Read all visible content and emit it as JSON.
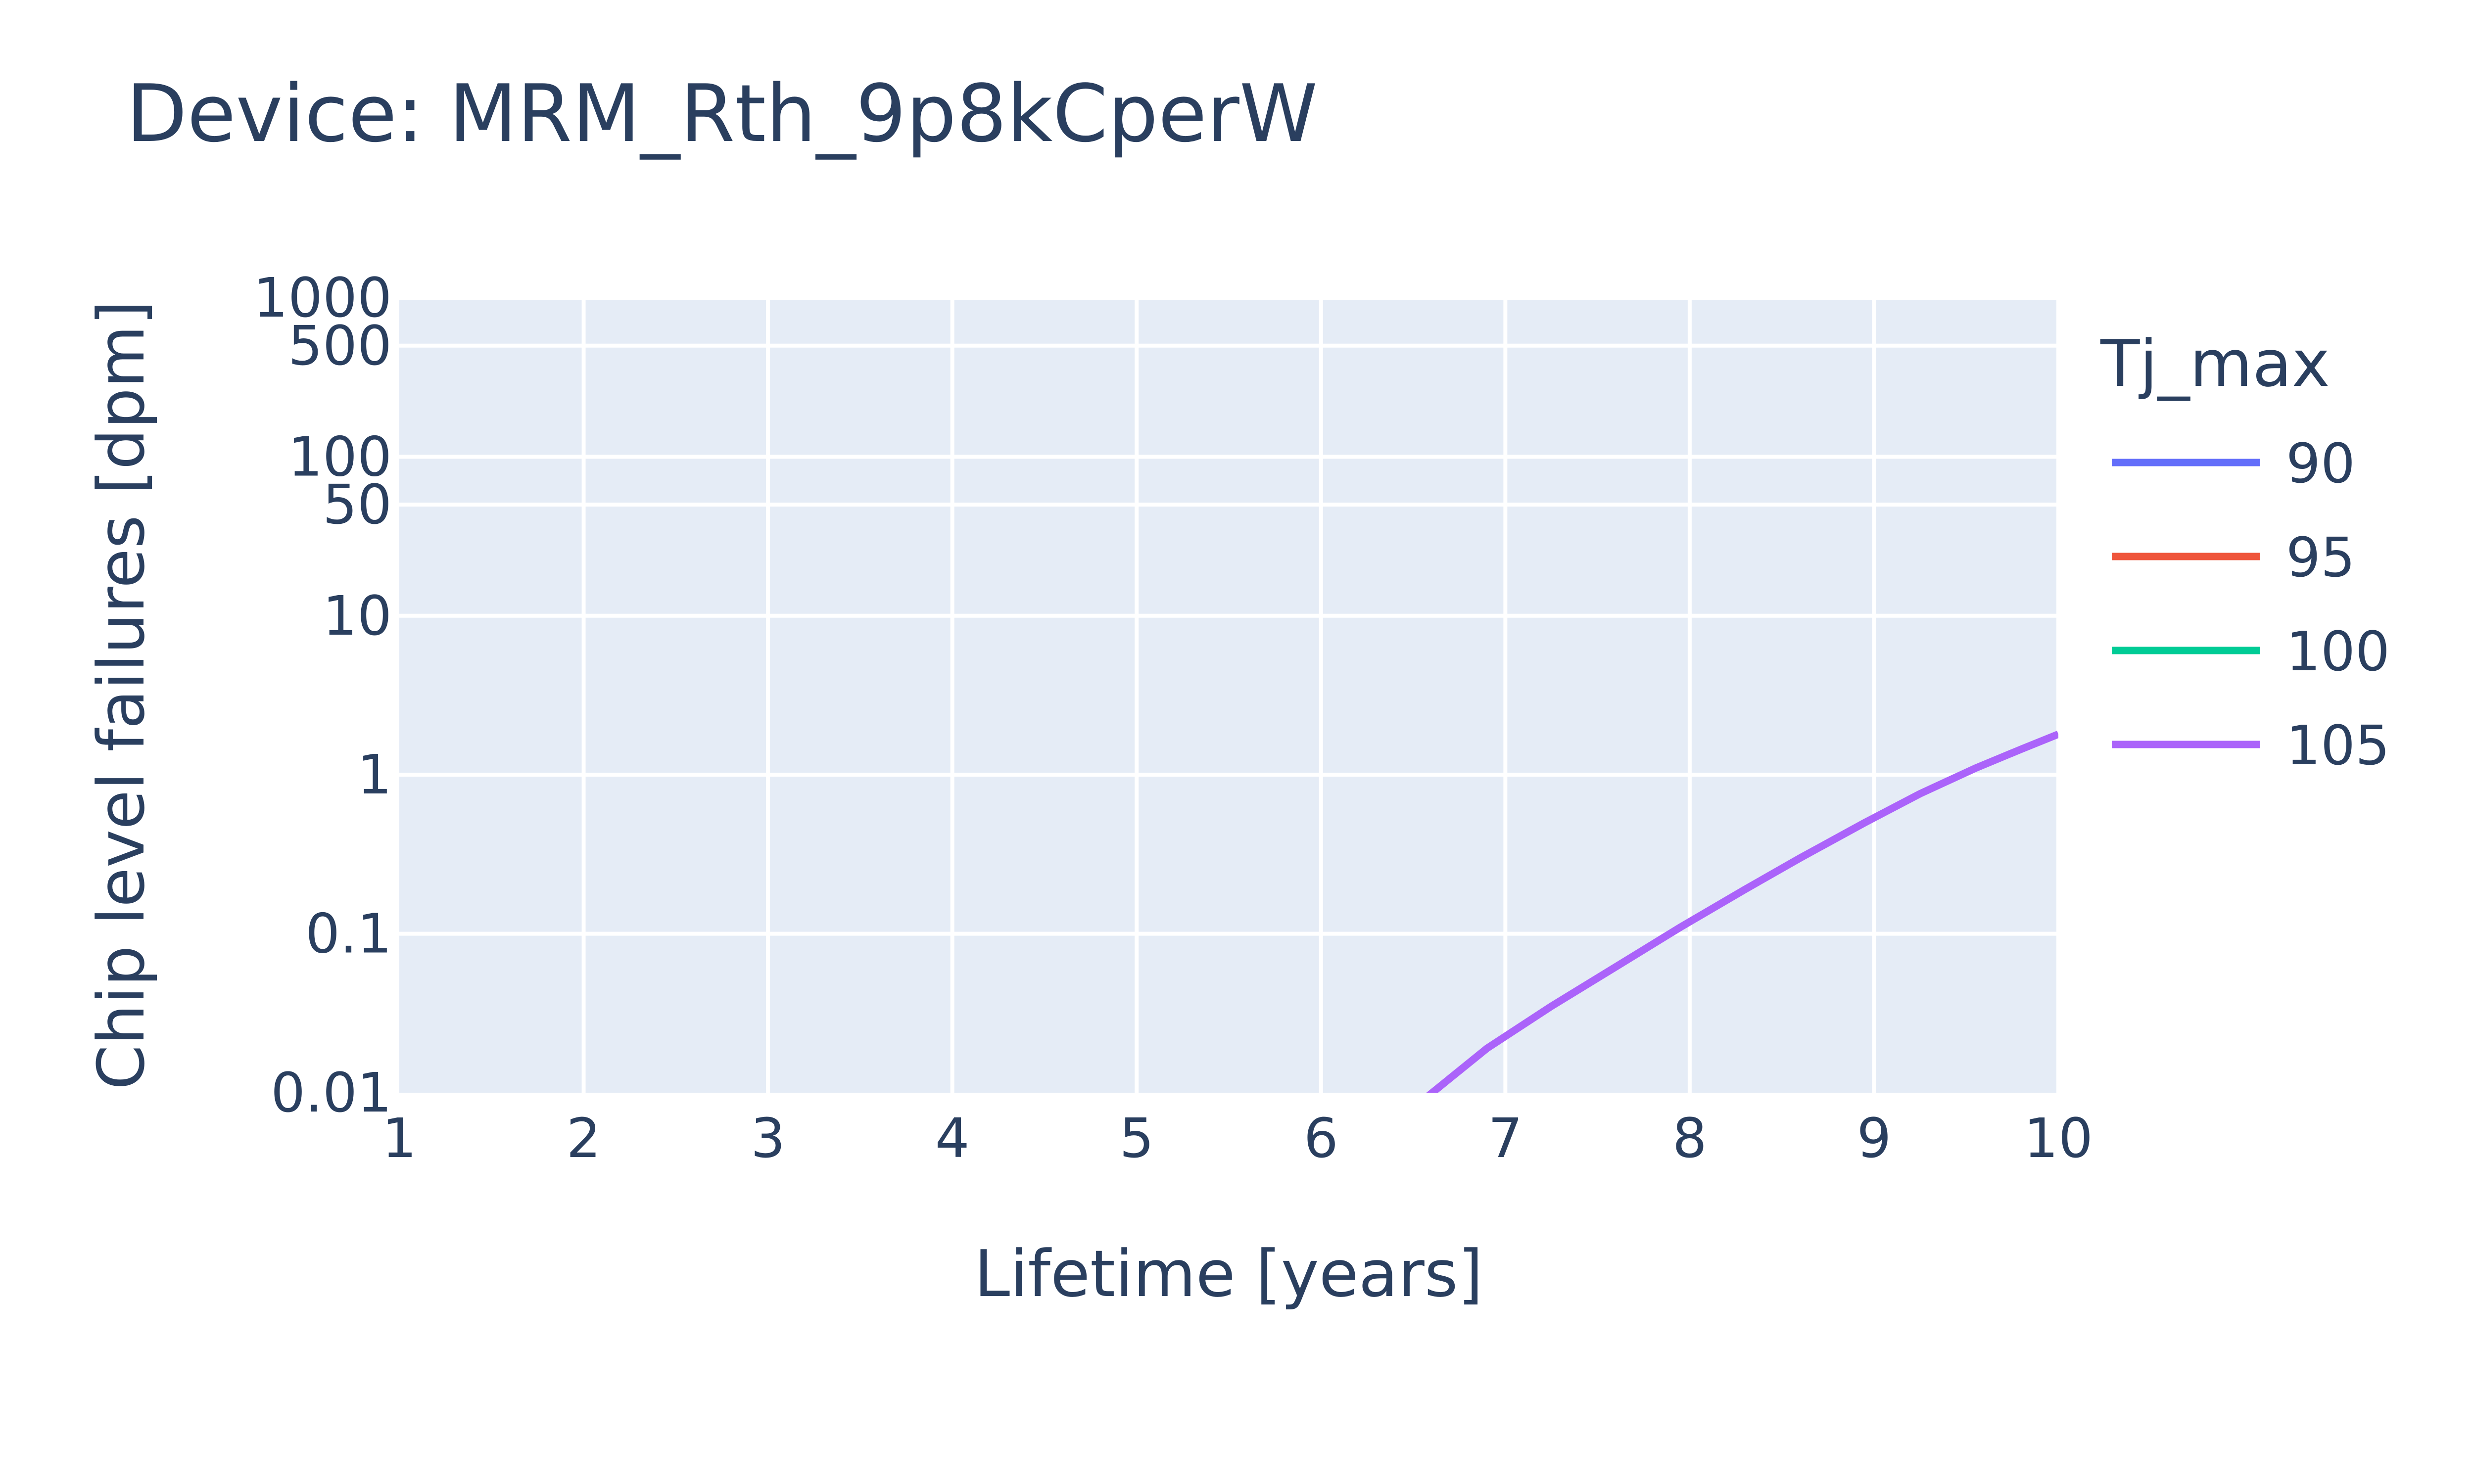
{
  "chart_data": {
    "type": "line",
    "title": "Device: MRM_Rth_9p8kCperW",
    "xlabel": "Lifetime [years]",
    "ylabel": "Chip level failures [dpm]",
    "xlim": [
      1,
      10
    ],
    "ylim": [
      0.01,
      1000
    ],
    "y_scale": "log",
    "x_ticks": [
      1,
      2,
      3,
      4,
      5,
      6,
      7,
      8,
      9,
      10
    ],
    "x_tick_labels": [
      "1",
      "2",
      "3",
      "4",
      "5",
      "6",
      "7",
      "8",
      "9",
      "10"
    ],
    "y_ticks": [
      0.01,
      0.1,
      1,
      10,
      50,
      100,
      500,
      1000
    ],
    "y_tick_labels": [
      "0.01",
      "0.1",
      "1",
      "10",
      "50",
      "100",
      "500",
      "1000"
    ],
    "grid": true,
    "legend_title": "Tj_max",
    "legend_position": "right",
    "series": [
      {
        "name": "90",
        "color": "#636efa",
        "x": [],
        "y": []
      },
      {
        "name": "95",
        "color": "#ef553b",
        "x": [],
        "y": []
      },
      {
        "name": "100",
        "color": "#00cc96",
        "x": [],
        "y": []
      },
      {
        "name": "105",
        "color": "#ab63fa",
        "x": [
          6.5,
          6.9,
          7.25,
          7.6,
          7.95,
          8.3,
          8.6,
          8.95,
          9.25,
          9.55,
          9.8,
          10
        ],
        "y": [
          0.008,
          0.019,
          0.035,
          0.062,
          0.11,
          0.19,
          0.3,
          0.5,
          0.76,
          1.1,
          1.45,
          1.8
        ]
      }
    ]
  }
}
